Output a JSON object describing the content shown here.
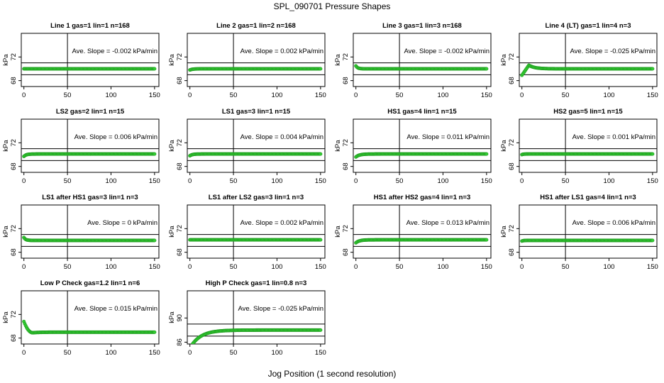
{
  "title": "SPL_090701  Pressure Shapes",
  "xlabel": "Jog Position (1 second resolution)",
  "colors": {
    "points": "#33cc33",
    "axes": "#000000"
  },
  "chart_data": [
    {
      "type": "scatter",
      "title": "Line 1 gas=1 lin=1 n=168",
      "slope_label": "Ave. Slope =",
      "slope_value": "-0.002",
      "slope_unit": "kPa/min",
      "ylabel": "kPa",
      "xlim": [
        -3,
        155
      ],
      "ylim": [
        67,
        76
      ],
      "xticks": [
        0,
        50,
        100,
        150
      ],
      "yticks": [
        68,
        72
      ],
      "hlines": [
        71.0,
        69.0
      ],
      "vline": 50,
      "shape": {
        "base": 70.0,
        "start": 70.0,
        "settle": 1
      }
    },
    {
      "type": "scatter",
      "title": "Line 2 gas=1 lin=2 n=168",
      "slope_label": "Ave. Slope =",
      "slope_value": "0.002",
      "slope_unit": "kPa/min",
      "ylabel": "kPa",
      "xlim": [
        -3,
        155
      ],
      "ylim": [
        67,
        76
      ],
      "xticks": [
        0,
        50,
        100,
        150
      ],
      "yticks": [
        68,
        72
      ],
      "hlines": [
        71.0,
        69.0
      ],
      "vline": 50,
      "shape": {
        "base": 70.0,
        "start": 69.8,
        "settle": 10
      }
    },
    {
      "type": "scatter",
      "title": "Line 3 gas=1 lin=3 n=168",
      "slope_label": "Ave. Slope =",
      "slope_value": "-0.002",
      "slope_unit": "kPa/min",
      "ylabel": "kPa",
      "xlim": [
        -3,
        155
      ],
      "ylim": [
        67,
        76
      ],
      "xticks": [
        0,
        50,
        100,
        150
      ],
      "yticks": [
        68,
        72
      ],
      "hlines": [
        71.0,
        69.0
      ],
      "vline": 50,
      "shape": {
        "base": 70.0,
        "start": 70.5,
        "settle": 6
      }
    },
    {
      "type": "scatter",
      "title": "Line 4 (LT) gas=1 lin=4 n=3",
      "slope_label": "Ave. Slope =",
      "slope_value": "-0.025",
      "slope_unit": "kPa/min",
      "ylabel": "kPa",
      "xlim": [
        -3,
        155
      ],
      "ylim": [
        67,
        76
      ],
      "xticks": [
        0,
        50,
        100,
        150
      ],
      "yticks": [
        68,
        72
      ],
      "hlines": [
        71.0,
        69.0
      ],
      "vline": 50,
      "shape": {
        "base": 70.0,
        "start": 68.9,
        "peak": 70.6,
        "peak_at": 8,
        "settle": 20
      }
    },
    {
      "type": "scatter",
      "title": "LS2 gas=2 lin=1 n=15",
      "slope_label": "Ave. Slope =",
      "slope_value": "0.006",
      "slope_unit": "kPa/min",
      "ylabel": "kPa",
      "xlim": [
        -3,
        155
      ],
      "ylim": [
        67,
        76
      ],
      "xticks": [
        0,
        50,
        100,
        150
      ],
      "yticks": [
        68,
        72
      ],
      "hlines": [
        71.0,
        69.0
      ],
      "vline": 50,
      "shape": {
        "base": 70.1,
        "start": 69.7,
        "settle": 8
      }
    },
    {
      "type": "scatter",
      "title": "LS1 gas=3 lin=1 n=15",
      "slope_label": "Ave. Slope =",
      "slope_value": "0.004",
      "slope_unit": "kPa/min",
      "ylabel": "kPa",
      "xlim": [
        -3,
        155
      ],
      "ylim": [
        67,
        76
      ],
      "xticks": [
        0,
        50,
        100,
        150
      ],
      "yticks": [
        68,
        72
      ],
      "hlines": [
        71.0,
        69.0
      ],
      "vline": 50,
      "shape": {
        "base": 70.1,
        "start": 69.8,
        "settle": 8
      }
    },
    {
      "type": "scatter",
      "title": "HS1 gas=4 lin=1 n=15",
      "slope_label": "Ave. Slope =",
      "slope_value": "0.011",
      "slope_unit": "kPa/min",
      "ylabel": "kPa",
      "xlim": [
        -3,
        155
      ],
      "ylim": [
        67,
        76
      ],
      "xticks": [
        0,
        50,
        100,
        150
      ],
      "yticks": [
        68,
        72
      ],
      "hlines": [
        71.0,
        69.0
      ],
      "vline": 50,
      "shape": {
        "base": 70.1,
        "start": 69.6,
        "settle": 12
      }
    },
    {
      "type": "scatter",
      "title": "HS2 gas=5 lin=1 n=15",
      "slope_label": "Ave. Slope =",
      "slope_value": "0.001",
      "slope_unit": "kPa/min",
      "ylabel": "kPa",
      "xlim": [
        -3,
        155
      ],
      "ylim": [
        67,
        76
      ],
      "xticks": [
        0,
        50,
        100,
        150
      ],
      "yticks": [
        68,
        72
      ],
      "hlines": [
        71.0,
        69.0
      ],
      "vline": 50,
      "shape": {
        "base": 70.1,
        "start": 70.0,
        "settle": 4
      }
    },
    {
      "type": "scatter",
      "title": "LS1 after HS1 gas=3 lin=1 n=3",
      "slope_label": "Ave. Slope =",
      "slope_value": "0",
      "slope_unit": "kPa/min",
      "ylabel": "kPa",
      "xlim": [
        -3,
        155
      ],
      "ylim": [
        67,
        76
      ],
      "xticks": [
        0,
        50,
        100,
        150
      ],
      "yticks": [
        68,
        72
      ],
      "hlines": [
        71.0,
        69.0
      ],
      "vline": 50,
      "shape": {
        "base": 70.0,
        "start": 70.5,
        "settle": 6
      }
    },
    {
      "type": "scatter",
      "title": "LS1 after LS2 gas=3 lin=1 n=3",
      "slope_label": "Ave. Slope =",
      "slope_value": "0.002",
      "slope_unit": "kPa/min",
      "ylabel": "kPa",
      "xlim": [
        -3,
        155
      ],
      "ylim": [
        67,
        76
      ],
      "xticks": [
        0,
        50,
        100,
        150
      ],
      "yticks": [
        68,
        72
      ],
      "hlines": [
        71.0,
        69.0
      ],
      "vline": 50,
      "shape": {
        "base": 70.1,
        "start": 70.1,
        "settle": 1
      }
    },
    {
      "type": "scatter",
      "title": "HS1 after HS2 gas=4 lin=1 n=3",
      "slope_label": "Ave. Slope =",
      "slope_value": "0.013",
      "slope_unit": "kPa/min",
      "ylabel": "kPa",
      "xlim": [
        -3,
        155
      ],
      "ylim": [
        67,
        76
      ],
      "xticks": [
        0,
        50,
        100,
        150
      ],
      "yticks": [
        68,
        72
      ],
      "hlines": [
        71.0,
        69.0
      ],
      "vline": 50,
      "shape": {
        "base": 70.1,
        "start": 69.6,
        "settle": 12
      }
    },
    {
      "type": "scatter",
      "title": "HS1 after LS1 gas=4 lin=1 n=3",
      "slope_label": "Ave. Slope =",
      "slope_value": "0.006",
      "slope_unit": "kPa/min",
      "ylabel": "kPa",
      "xlim": [
        -3,
        155
      ],
      "ylim": [
        67,
        76
      ],
      "xticks": [
        0,
        50,
        100,
        150
      ],
      "yticks": [
        68,
        72
      ],
      "hlines": [
        71.0,
        69.0
      ],
      "vline": 50,
      "shape": {
        "base": 70.0,
        "start": 69.9,
        "settle": 6
      }
    },
    {
      "type": "scatter",
      "title": "Low P Check gas=1.2 lin=1 n=6",
      "slope_label": "Ave. Slope =",
      "slope_value": "0.015",
      "slope_unit": "kPa/min",
      "ylabel": "kPa",
      "xlim": [
        -3,
        155
      ],
      "ylim": [
        67,
        76
      ],
      "xticks": [
        0,
        50,
        100,
        150
      ],
      "yticks": [
        68,
        72
      ],
      "hlines": [],
      "vline": 50,
      "shape": {
        "base": 69.0,
        "start": 70.8,
        "dip": 68.9,
        "dip_at": 10,
        "settle": 25
      }
    },
    {
      "type": "scatter",
      "title": "High P Check gas=1 lin=0.8 n=3",
      "slope_label": "Ave. Slope =",
      "slope_value": "-0.025",
      "slope_unit": "kPa/min",
      "ylabel": "kPa",
      "xlim": [
        -3,
        155
      ],
      "ylim": [
        85.7,
        94.5
      ],
      "xticks": [
        0,
        50,
        100,
        150
      ],
      "yticks": [
        86,
        90
      ],
      "hlines": [
        89.0,
        87.0
      ],
      "vline": 50,
      "shape": {
        "base": 88.0,
        "start": 85.0,
        "settle": 35
      }
    }
  ]
}
